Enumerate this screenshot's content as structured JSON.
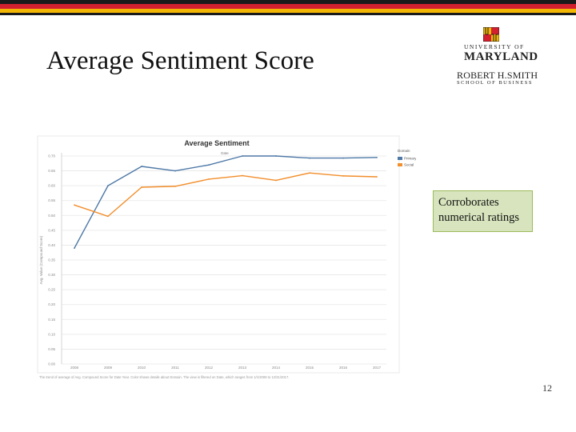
{
  "slide": {
    "title": "Average Sentiment Score",
    "callout": "Corroborates numerical ratings",
    "page_number": "12"
  },
  "logo": {
    "line1": "UNIVERSITY OF",
    "line2": "MARYLAND",
    "line3": "ROBERT H.SMITH",
    "line4": "SCHOOL OF BUSINESS"
  },
  "colors": {
    "brand_black": "#1a1a1a",
    "brand_red": "#d3202f",
    "brand_gold": "#f2b704",
    "series_blue": "#4e79a7",
    "series_orange": "#f28e2b",
    "callout_fill": "#d7e4bd"
  },
  "chart_data": {
    "type": "line",
    "title": "Average Sentiment",
    "subtitle": "Date",
    "xlabel": "",
    "ylabel": "Avg. Value (Compound Score)",
    "x": [
      "2008",
      "2009",
      "2010",
      "2011",
      "2012",
      "2013",
      "2014",
      "2015",
      "2016",
      "2017"
    ],
    "yticks": [
      "0.00",
      "0.05",
      "0.10",
      "0.15",
      "0.20",
      "0.25",
      "0.30",
      "0.35",
      "0.40",
      "0.45",
      "0.50",
      "0.55",
      "0.60",
      "0.65",
      "0.70"
    ],
    "ylim": [
      0,
      0.7
    ],
    "grid": true,
    "legend_position": "top-right",
    "legend_title": "Domain",
    "series": [
      {
        "name": "Primary",
        "color": "#4e79a7",
        "values": [
          0.39,
          0.6,
          0.665,
          0.65,
          0.67,
          0.7,
          0.7,
          0.693,
          0.693,
          0.695
        ]
      },
      {
        "name": "Social",
        "color": "#f28e2b",
        "values": [
          0.535,
          0.497,
          0.595,
          0.598,
          0.622,
          0.634,
          0.618,
          0.643,
          0.633,
          0.63
        ]
      }
    ],
    "footnote": "The trend of average of Avg. Compound Score for Date Year. Color shows details about Domain. The view is filtered on Date, which ranges from 1/1/2008 to 12/31/2017."
  }
}
